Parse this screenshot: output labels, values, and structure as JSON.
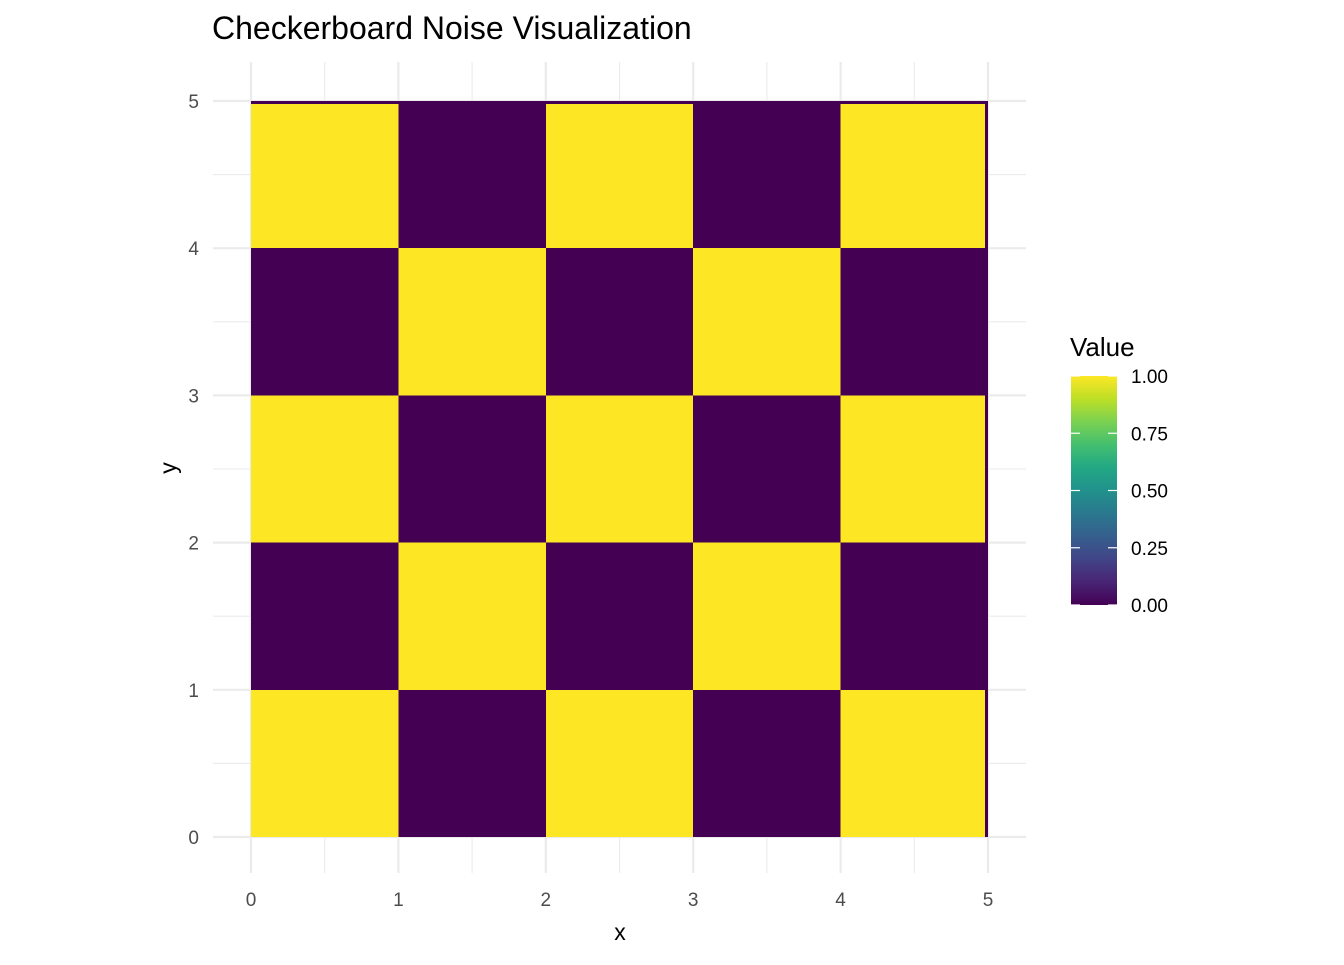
{
  "chart_data": {
    "type": "heatmap",
    "title": "Checkerboard Noise Visualization",
    "xlabel": "x",
    "ylabel": "y",
    "xlim": [
      0,
      5
    ],
    "ylim": [
      0,
      5
    ],
    "x_ticks": [
      "0",
      "1",
      "2",
      "3",
      "4",
      "5"
    ],
    "y_ticks": [
      "0",
      "1",
      "2",
      "3",
      "4",
      "5"
    ],
    "grid": true,
    "colorscale": "viridis",
    "colors": {
      "low": "#440154",
      "high": "#fde725"
    },
    "legend": {
      "title": "Value",
      "placement": "right",
      "range": [
        0,
        1
      ],
      "tick_labels": [
        "1.00",
        "0.75",
        "0.50",
        "0.25",
        "0.00"
      ],
      "tick_values": [
        1.0,
        0.75,
        0.5,
        0.25,
        0.0
      ]
    },
    "cell_size": 1,
    "rows_y": [
      0,
      1,
      2,
      3,
      4
    ],
    "cols_x": [
      0,
      1,
      2,
      3,
      4
    ],
    "values": [
      [
        1,
        0,
        1,
        0,
        1
      ],
      [
        0,
        1,
        0,
        1,
        0
      ],
      [
        1,
        0,
        1,
        0,
        1
      ],
      [
        0,
        1,
        0,
        1,
        0
      ],
      [
        1,
        0,
        1,
        0,
        1
      ]
    ]
  }
}
